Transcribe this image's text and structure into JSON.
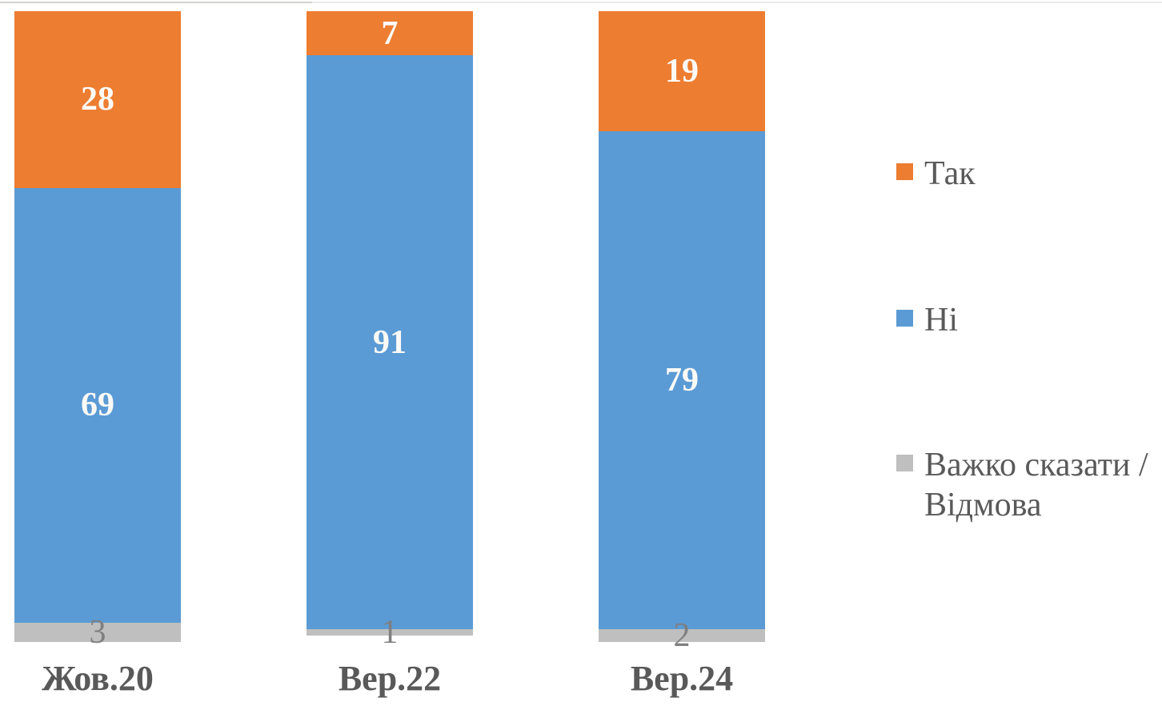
{
  "chart_data": {
    "type": "bar",
    "stacked": true,
    "orientation": "vertical",
    "title": "",
    "categories": [
      "Жов.20",
      "Вер.22",
      "Вер.24"
    ],
    "series": [
      {
        "name": "Так",
        "color": "#ED7D31",
        "values": [
          28,
          7,
          19
        ]
      },
      {
        "name": "Ні",
        "color": "#5B9BD5",
        "values": [
          69,
          91,
          79
        ]
      },
      {
        "name": "Важко сказати / Відмова",
        "color": "#BFBFBF",
        "values": [
          3,
          1,
          2
        ]
      }
    ],
    "value_axis": {
      "min": 0,
      "max": 100,
      "visible": false
    },
    "grid": false,
    "legend_position": "right",
    "data_label_color_on_colored_segments": "#FFFFFF",
    "data_label_color_on_gray_segments": "#7F7F7F",
    "category_label_color": "#595959",
    "legend_text_color": "#595959"
  }
}
